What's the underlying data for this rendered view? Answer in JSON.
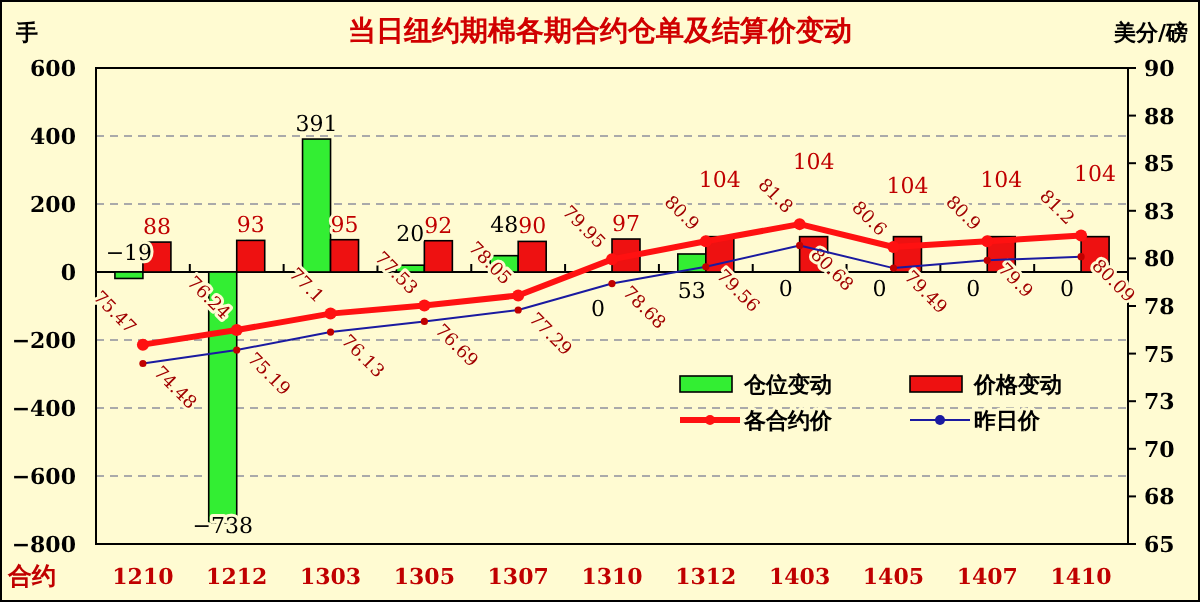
{
  "chart_data": {
    "type": "bar",
    "title": "当日纽约期棉各期合约仓单及结算价变动",
    "ylabel": "手",
    "y2label": "美分/磅",
    "xlabel": "合约",
    "categories": [
      "1210",
      "1212",
      "1303",
      "1305",
      "1307",
      "1310",
      "1312",
      "1403",
      "1405",
      "1407",
      "1410"
    ],
    "series": [
      {
        "name": "仓位变动",
        "color": "#33ee33",
        "values": [
          -19,
          -738,
          391,
          20,
          48,
          0,
          53,
          0,
          0,
          0,
          0
        ]
      },
      {
        "name": "价格变动",
        "color": "#ee1111",
        "values": [
          88,
          93,
          95,
          92,
          90,
          97,
          104,
          104,
          104,
          104,
          104
        ]
      },
      {
        "name": "各合约价",
        "type": "line",
        "axis": "y2",
        "color": "#ff1111",
        "marker": "circle",
        "values": [
          75.47,
          76.24,
          77.1,
          77.53,
          78.05,
          79.95,
          80.9,
          81.8,
          80.6,
          80.9,
          81.2
        ]
      },
      {
        "name": "昨日价",
        "type": "line",
        "axis": "y2",
        "color": "#1a1aa0",
        "marker": "circle",
        "values": [
          74.48,
          75.19,
          76.13,
          76.69,
          77.29,
          78.68,
          79.56,
          80.68,
          79.49,
          79.9,
          80.09
        ]
      }
    ],
    "ylim": [
      -800,
      600
    ],
    "yticks": [
      -800,
      -600,
      -400,
      -200,
      0,
      200,
      400,
      600
    ],
    "y2lim": [
      65,
      90
    ],
    "y2ticks": [
      65,
      {
        "value": 67.5,
        "label": "68"
      },
      70,
      {
        "value": 72.5,
        "label": "73"
      },
      75,
      {
        "value": 77.5,
        "label": "78"
      },
      80,
      {
        "value": 82.5,
        "label": "83"
      },
      85,
      {
        "value": 87.5,
        "label": "88"
      },
      90
    ],
    "grid": "y",
    "legend": "bottom right",
    "data_labels": true
  }
}
